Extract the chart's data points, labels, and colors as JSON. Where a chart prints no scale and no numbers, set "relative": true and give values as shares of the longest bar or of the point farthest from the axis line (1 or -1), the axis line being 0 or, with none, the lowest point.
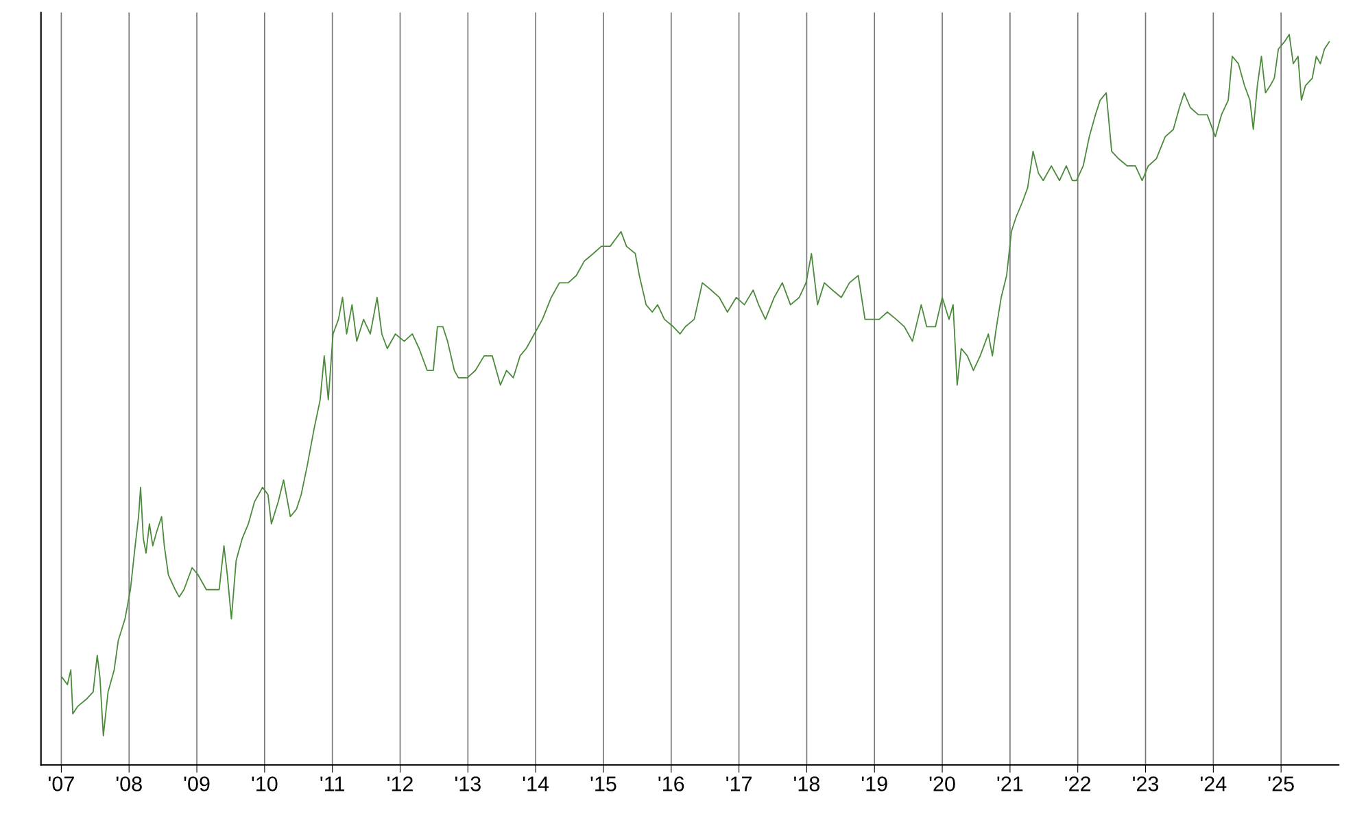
{
  "chart_data": {
    "type": "line",
    "relative": true,
    "grid": "x",
    "line_style": "solid",
    "marker": "none",
    "xlim": [
      2006.7,
      2025.85
    ],
    "xticks": [
      {
        "value": 2007,
        "label": "'07"
      },
      {
        "value": 2008,
        "label": "'08"
      },
      {
        "value": 2009,
        "label": "'09"
      },
      {
        "value": 2010,
        "label": "'10"
      },
      {
        "value": 2011,
        "label": "'11"
      },
      {
        "value": 2012,
        "label": "'12"
      },
      {
        "value": 2013,
        "label": "'13"
      },
      {
        "value": 2014,
        "label": "'14"
      },
      {
        "value": 2015,
        "label": "'15"
      },
      {
        "value": 2016,
        "label": "'16"
      },
      {
        "value": 2017,
        "label": "'17"
      },
      {
        "value": 2018,
        "label": "'18"
      },
      {
        "value": 2019,
        "label": "'19"
      },
      {
        "value": 2020,
        "label": "'20"
      },
      {
        "value": 2021,
        "label": "'21"
      },
      {
        "value": 2022,
        "label": "'22"
      },
      {
        "value": 2023,
        "label": "'23"
      },
      {
        "value": 2024,
        "label": "'24"
      },
      {
        "value": 2025,
        "label": "'25"
      }
    ],
    "series": [
      {
        "color": "#4b8b3b",
        "x": [
          2007.01,
          2007.09,
          2007.14,
          2007.17,
          2007.24,
          2007.37,
          2007.47,
          2007.53,
          2007.57,
          2007.62,
          2007.69,
          2007.78,
          2007.84,
          2007.94,
          2008.02,
          2008.09,
          2008.14,
          2008.17,
          2008.21,
          2008.25,
          2008.3,
          2008.35,
          2008.41,
          2008.48,
          2008.52,
          2008.58,
          2008.68,
          2008.74,
          2008.81,
          2008.93,
          2009.02,
          2009.14,
          2009.27,
          2009.33,
          2009.4,
          2009.45,
          2009.51,
          2009.58,
          2009.67,
          2009.76,
          2009.85,
          2009.91,
          2009.97,
          2010.05,
          2010.1,
          2010.2,
          2010.28,
          2010.32,
          2010.38,
          2010.47,
          2010.54,
          2010.63,
          2010.73,
          2010.82,
          2010.88,
          2010.94,
          2011.01,
          2011.09,
          2011.15,
          2011.21,
          2011.29,
          2011.36,
          2011.46,
          2011.56,
          2011.66,
          2011.73,
          2011.81,
          2011.93,
          2012.06,
          2012.18,
          2012.28,
          2012.4,
          2012.49,
          2012.55,
          2012.63,
          2012.7,
          2012.8,
          2012.86,
          2012.99,
          2013.11,
          2013.24,
          2013.36,
          2013.48,
          2013.57,
          2013.67,
          2013.77,
          2013.86,
          2013.98,
          2014.1,
          2014.23,
          2014.35,
          2014.48,
          2014.6,
          2014.72,
          2014.85,
          2014.97,
          2015.1,
          2015.26,
          2015.34,
          2015.47,
          2015.53,
          2015.63,
          2015.72,
          2015.8,
          2015.9,
          2016.03,
          2016.13,
          2016.21,
          2016.34,
          2016.46,
          2016.59,
          2016.71,
          2016.83,
          2016.96,
          2017.08,
          2017.21,
          2017.29,
          2017.39,
          2017.52,
          2017.64,
          2017.76,
          2017.89,
          2017.99,
          2018.07,
          2018.16,
          2018.26,
          2018.38,
          2018.51,
          2018.63,
          2018.76,
          2018.86,
          2018.98,
          2019.07,
          2019.19,
          2019.32,
          2019.44,
          2019.56,
          2019.69,
          2019.77,
          2019.9,
          2020.0,
          2020.1,
          2020.16,
          2020.22,
          2020.28,
          2020.37,
          2020.46,
          2020.56,
          2020.68,
          2020.74,
          2020.8,
          2020.87,
          2020.95,
          2021.02,
          2021.09,
          2021.18,
          2021.26,
          2021.34,
          2021.42,
          2021.49,
          2021.61,
          2021.73,
          2021.83,
          2021.92,
          2021.98,
          2022.08,
          2022.17,
          2022.26,
          2022.33,
          2022.42,
          2022.5,
          2022.6,
          2022.73,
          2022.85,
          2022.95,
          2023.04,
          2023.16,
          2023.29,
          2023.41,
          2023.5,
          2023.57,
          2023.66,
          2023.78,
          2023.91,
          2024.03,
          2024.12,
          2024.22,
          2024.28,
          2024.37,
          2024.46,
          2024.54,
          2024.59,
          2024.65,
          2024.71,
          2024.77,
          2024.84,
          2024.9,
          2024.96,
          2025.05,
          2025.12,
          2025.18,
          2025.25,
          2025.3,
          2025.36,
          2025.46,
          2025.52,
          2025.58,
          2025.64,
          2025.71
        ],
        "values": [
          0.12,
          0.11,
          0.13,
          0.07,
          0.08,
          0.09,
          0.1,
          0.15,
          0.12,
          0.04,
          0.1,
          0.13,
          0.17,
          0.2,
          0.24,
          0.3,
          0.34,
          0.38,
          0.31,
          0.29,
          0.33,
          0.3,
          0.32,
          0.34,
          0.3,
          0.26,
          0.24,
          0.23,
          0.24,
          0.27,
          0.26,
          0.24,
          0.24,
          0.24,
          0.3,
          0.26,
          0.2,
          0.28,
          0.31,
          0.33,
          0.36,
          0.37,
          0.38,
          0.37,
          0.33,
          0.36,
          0.39,
          0.37,
          0.34,
          0.35,
          0.37,
          0.41,
          0.46,
          0.5,
          0.56,
          0.5,
          0.59,
          0.61,
          0.64,
          0.59,
          0.63,
          0.58,
          0.61,
          0.59,
          0.64,
          0.59,
          0.57,
          0.59,
          0.58,
          0.59,
          0.57,
          0.54,
          0.54,
          0.6,
          0.6,
          0.58,
          0.54,
          0.53,
          0.53,
          0.54,
          0.56,
          0.56,
          0.52,
          0.54,
          0.53,
          0.56,
          0.57,
          0.59,
          0.61,
          0.64,
          0.66,
          0.66,
          0.67,
          0.69,
          0.7,
          0.71,
          0.71,
          0.73,
          0.71,
          0.7,
          0.67,
          0.63,
          0.62,
          0.63,
          0.61,
          0.6,
          0.59,
          0.6,
          0.61,
          0.66,
          0.65,
          0.64,
          0.62,
          0.64,
          0.63,
          0.65,
          0.63,
          0.61,
          0.64,
          0.66,
          0.63,
          0.64,
          0.66,
          0.7,
          0.63,
          0.66,
          0.65,
          0.64,
          0.66,
          0.67,
          0.61,
          0.61,
          0.61,
          0.62,
          0.61,
          0.6,
          0.58,
          0.63,
          0.6,
          0.6,
          0.64,
          0.61,
          0.63,
          0.52,
          0.57,
          0.56,
          0.54,
          0.56,
          0.59,
          0.56,
          0.6,
          0.64,
          0.67,
          0.73,
          0.75,
          0.77,
          0.79,
          0.84,
          0.81,
          0.8,
          0.82,
          0.8,
          0.82,
          0.8,
          0.8,
          0.82,
          0.86,
          0.89,
          0.91,
          0.92,
          0.84,
          0.83,
          0.82,
          0.82,
          0.8,
          0.82,
          0.83,
          0.86,
          0.87,
          0.9,
          0.92,
          0.9,
          0.89,
          0.89,
          0.86,
          0.89,
          0.91,
          0.97,
          0.96,
          0.93,
          0.91,
          0.87,
          0.93,
          0.97,
          0.92,
          0.93,
          0.94,
          0.98,
          0.99,
          1.0,
          0.96,
          0.97,
          0.91,
          0.93,
          0.94,
          0.97,
          0.96,
          0.98,
          0.99
        ]
      }
    ]
  }
}
